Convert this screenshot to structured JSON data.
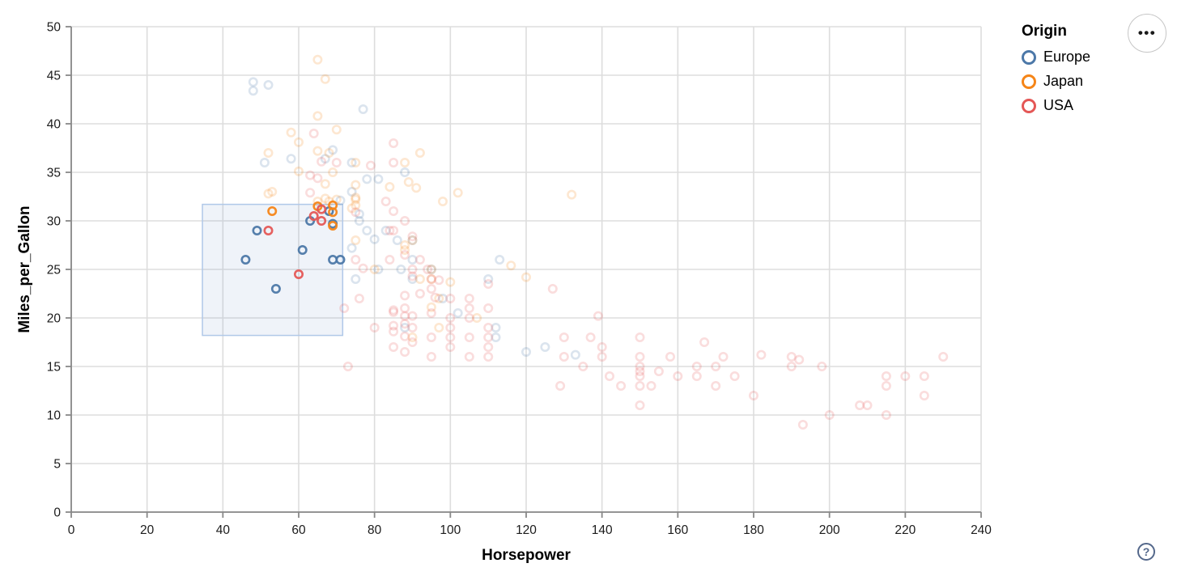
{
  "legend": {
    "title": "Origin",
    "items": [
      {
        "label": "Europe",
        "color": "#4c78a8"
      },
      {
        "label": "Japan",
        "color": "#f58518"
      },
      {
        "label": "USA",
        "color": "#e45756"
      }
    ]
  },
  "controls": {
    "menu_button_glyph": "•••",
    "help_button_glyph": "?"
  },
  "colors": {
    "grid": "#dddddd",
    "axis": "#888888",
    "tick_label": "#1b1b1b",
    "brush_fill": "rgba(140,170,215,0.14)",
    "brush_stroke": "#b0c8e8",
    "europe": "#4c78a8",
    "japan": "#f58518",
    "usa": "#e45756"
  },
  "chart_data": {
    "type": "scatter",
    "title": "",
    "xlabel": "Horsepower",
    "ylabel": "Miles_per_Gallon",
    "xlim": [
      0,
      240
    ],
    "ylim": [
      0,
      50
    ],
    "xticks": [
      0,
      20,
      40,
      60,
      80,
      100,
      120,
      140,
      160,
      180,
      200,
      220,
      240
    ],
    "yticks": [
      0,
      5,
      10,
      15,
      20,
      25,
      30,
      35,
      40,
      45,
      50
    ],
    "grid": true,
    "legend_position": "right",
    "point_style": "open-circle",
    "faded_opacity": 0.2,
    "selected_opacity": 0.95,
    "brush": {
      "x": [
        34.6,
        71.6
      ],
      "y": [
        18.2,
        31.7
      ]
    },
    "series": [
      {
        "name": "Europe",
        "color": "#4c78a8",
        "points": [
          [
            48,
            43.4
          ],
          [
            48,
            44.3
          ],
          [
            52,
            44
          ],
          [
            77,
            41.5
          ],
          [
            67,
            36.4
          ],
          [
            88,
            35
          ],
          [
            74,
            36
          ],
          [
            74,
            33
          ],
          [
            78,
            34.3
          ],
          [
            81,
            34.3
          ],
          [
            76,
            30.7
          ],
          [
            80,
            28.1
          ],
          [
            78,
            29
          ],
          [
            83,
            29
          ],
          [
            76,
            30
          ],
          [
            58,
            36.4
          ],
          [
            51,
            36
          ],
          [
            69,
            37.3
          ],
          [
            71,
            32.1
          ],
          [
            90,
            24
          ],
          [
            90,
            28
          ],
          [
            95,
            25
          ],
          [
            113,
            26
          ],
          [
            87,
            25
          ],
          [
            90,
            26
          ],
          [
            81,
            25
          ],
          [
            110,
            24
          ],
          [
            125,
            17
          ],
          [
            133,
            16.2
          ],
          [
            120,
            16.5
          ],
          [
            112,
            19
          ],
          [
            112,
            18
          ],
          [
            86,
            28
          ],
          [
            98,
            22
          ],
          [
            88,
            19
          ],
          [
            102,
            20.5
          ],
          [
            75,
            24
          ],
          [
            74,
            27.2
          ],
          [
            46,
            26
          ],
          [
            49,
            29
          ],
          [
            54,
            23
          ],
          [
            61,
            27
          ],
          [
            63,
            30
          ],
          [
            68,
            31
          ],
          [
            69,
            29.7
          ],
          [
            69,
            26
          ],
          [
            71,
            26
          ]
        ]
      },
      {
        "name": "Japan",
        "color": "#f58518",
        "points": [
          [
            65,
            46.6
          ],
          [
            67,
            44.6
          ],
          [
            65,
            40.8
          ],
          [
            70,
            39.4
          ],
          [
            58,
            39.1
          ],
          [
            60,
            38.1
          ],
          [
            60,
            35.1
          ],
          [
            65,
            37.2
          ],
          [
            52,
            37
          ],
          [
            53,
            33
          ],
          [
            52,
            32.8
          ],
          [
            92,
            37
          ],
          [
            88,
            36
          ],
          [
            75,
            36
          ],
          [
            75,
            33.7
          ],
          [
            67,
            33.8
          ],
          [
            67,
            32.3
          ],
          [
            68,
            37
          ],
          [
            89,
            34
          ],
          [
            91,
            33.4
          ],
          [
            84,
            33.5
          ],
          [
            102,
            32.9
          ],
          [
            98,
            32
          ],
          [
            65,
            32
          ],
          [
            68,
            32
          ],
          [
            69,
            35
          ],
          [
            75,
            32.2
          ],
          [
            75,
            32.4
          ],
          [
            70,
            32.2
          ],
          [
            74,
            31.3
          ],
          [
            75,
            31.6
          ],
          [
            88,
            27
          ],
          [
            88,
            27.5
          ],
          [
            95,
            24
          ],
          [
            95,
            25
          ],
          [
            92,
            24
          ],
          [
            97,
            22
          ],
          [
            90,
            28
          ],
          [
            75,
            28
          ],
          [
            80,
            25
          ],
          [
            100,
            23.7
          ],
          [
            116,
            25.4
          ],
          [
            120,
            24.2
          ],
          [
            132,
            32.7
          ],
          [
            97,
            19
          ],
          [
            90,
            18
          ],
          [
            95,
            21.1
          ],
          [
            107,
            20
          ],
          [
            53,
            31
          ],
          [
            65,
            31.5
          ],
          [
            69,
            31.6
          ],
          [
            69,
            30.9
          ],
          [
            69,
            29.5
          ]
        ]
      },
      {
        "name": "USA",
        "color": "#e45756",
        "points": [
          [
            63,
            34.7
          ],
          [
            63,
            32.9
          ],
          [
            75,
            30.9
          ],
          [
            66,
            36.1
          ],
          [
            64,
            39
          ],
          [
            70,
            36
          ],
          [
            65,
            34.4
          ],
          [
            85,
            31
          ],
          [
            84,
            29
          ],
          [
            90,
            28.4
          ],
          [
            85,
            38
          ],
          [
            85,
            36
          ],
          [
            79,
            35.7
          ],
          [
            83,
            32
          ],
          [
            88,
            30
          ],
          [
            85,
            29
          ],
          [
            88,
            26.5
          ],
          [
            90,
            25
          ],
          [
            95,
            24
          ],
          [
            97,
            23.9
          ],
          [
            95,
            23
          ],
          [
            92,
            22.5
          ],
          [
            100,
            22
          ],
          [
            105,
            22
          ],
          [
            90,
            24.3
          ],
          [
            88,
            22.3
          ],
          [
            85,
            20.8
          ],
          [
            96,
            22.1
          ],
          [
            75,
            26
          ],
          [
            77,
            25.1
          ],
          [
            72,
            21
          ],
          [
            76,
            22
          ],
          [
            84,
            26
          ],
          [
            92,
            26
          ],
          [
            94,
            25
          ],
          [
            127,
            23
          ],
          [
            110,
            23.5
          ],
          [
            110,
            21
          ],
          [
            110,
            19
          ],
          [
            110,
            18
          ],
          [
            110,
            17
          ],
          [
            110,
            16
          ],
          [
            105,
            21
          ],
          [
            105,
            20
          ],
          [
            105,
            18
          ],
          [
            105,
            16
          ],
          [
            100,
            20
          ],
          [
            100,
            19
          ],
          [
            100,
            18
          ],
          [
            100,
            17
          ],
          [
            95,
            20.5
          ],
          [
            95,
            18
          ],
          [
            95,
            16
          ],
          [
            90,
            20.2
          ],
          [
            90,
            19
          ],
          [
            90,
            17.5
          ],
          [
            88,
            21
          ],
          [
            88,
            20.2
          ],
          [
            88,
            19.4
          ],
          [
            88,
            18.1
          ],
          [
            88,
            16.5
          ],
          [
            85,
            20.6
          ],
          [
            85,
            19.2
          ],
          [
            85,
            18.6
          ],
          [
            85,
            17
          ],
          [
            80,
            19
          ],
          [
            73,
            15
          ],
          [
            230,
            16
          ],
          [
            225,
            14
          ],
          [
            225,
            12
          ],
          [
            220,
            14
          ],
          [
            215,
            14
          ],
          [
            215,
            13
          ],
          [
            215,
            10
          ],
          [
            210,
            11
          ],
          [
            208,
            11
          ],
          [
            200,
            10
          ],
          [
            198,
            15
          ],
          [
            193,
            9
          ],
          [
            190,
            15
          ],
          [
            190,
            16
          ],
          [
            180,
            12
          ],
          [
            175,
            14
          ],
          [
            170,
            15
          ],
          [
            170,
            13
          ],
          [
            165,
            15
          ],
          [
            165,
            14
          ],
          [
            160,
            14
          ],
          [
            158,
            16
          ],
          [
            155,
            14.5
          ],
          [
            153,
            13
          ],
          [
            150,
            18
          ],
          [
            150,
            16
          ],
          [
            150,
            15
          ],
          [
            150,
            14.5
          ],
          [
            150,
            14
          ],
          [
            150,
            13
          ],
          [
            150,
            11
          ],
          [
            145,
            13
          ],
          [
            142,
            14
          ],
          [
            140,
            17
          ],
          [
            140,
            16
          ],
          [
            139,
            20.2
          ],
          [
            137,
            18
          ],
          [
            135,
            15
          ],
          [
            130,
            18
          ],
          [
            130,
            16
          ],
          [
            129,
            13
          ],
          [
            167,
            17.5
          ],
          [
            172,
            16
          ],
          [
            182,
            16.2
          ],
          [
            192,
            15.7
          ],
          [
            52,
            29
          ],
          [
            60,
            24.5
          ],
          [
            64,
            30.5
          ],
          [
            66,
            30
          ],
          [
            66,
            31.2
          ]
        ]
      }
    ]
  }
}
